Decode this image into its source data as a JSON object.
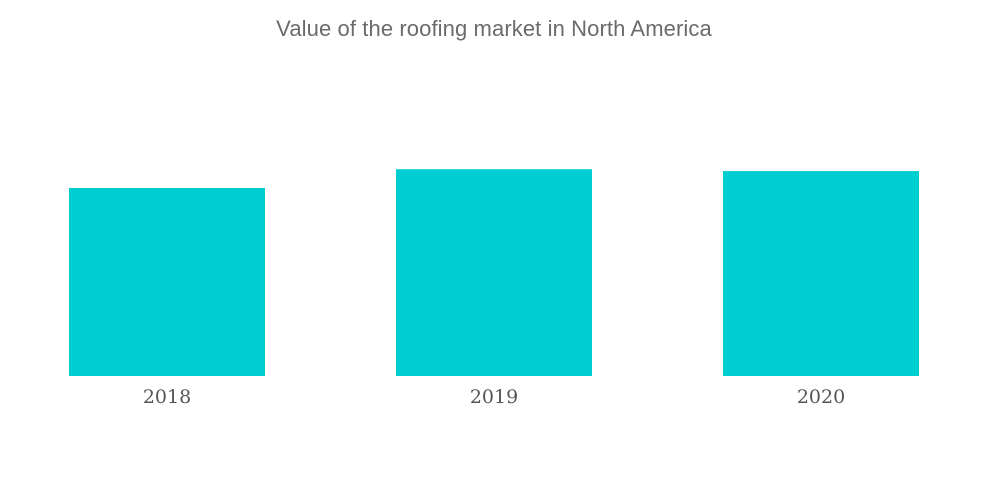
{
  "colors": {
    "bar": "#00CED1"
  },
  "chart_data": {
    "type": "bar",
    "title": "Value of the roofing market in North America",
    "categories": [
      "2018",
      "2019",
      "2020"
    ],
    "values": [
      100,
      110,
      109
    ],
    "xlabel": "",
    "ylabel": "",
    "ylim": [
      0,
      200
    ],
    "grid": false,
    "legend": "none"
  }
}
